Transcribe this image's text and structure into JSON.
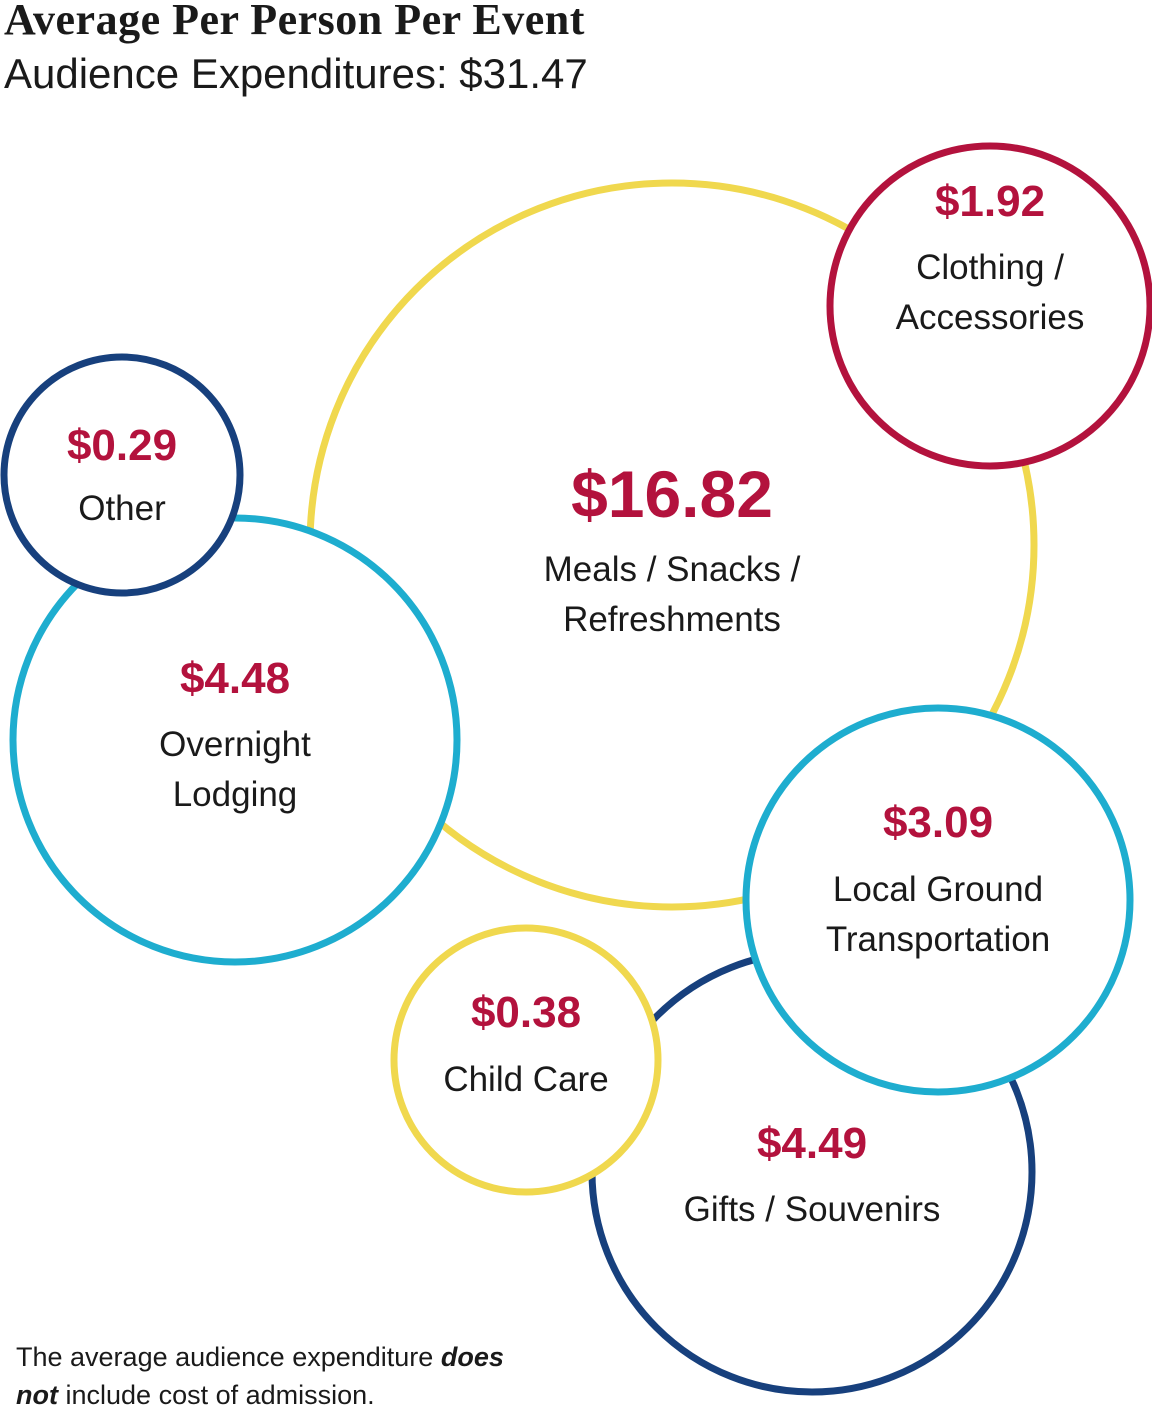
{
  "chart_data": {
    "type": "bubble",
    "title": "Average Per Person Per Event",
    "subtitle": "Audience Expenditures: $31.47",
    "categories": [
      "Meals / Snacks / Refreshments",
      "Clothing / Accessories",
      "Other",
      "Overnight Lodging",
      "Local Ground Transportation",
      "Child Care",
      "Gifts / Souvenirs"
    ],
    "values": [
      16.82,
      1.92,
      0.29,
      4.48,
      3.09,
      0.38,
      4.49
    ],
    "value_labels": [
      "$16.82",
      "$1.92",
      "$0.29",
      "$4.48",
      "$3.09",
      "$0.38",
      "$4.49"
    ],
    "colors": [
      "#f0d84e",
      "#b3123d",
      "#17407d",
      "#1eadcf",
      "#1eadcf",
      "#f0d84e",
      "#17407d"
    ],
    "value_label_color": "#b3123d",
    "note": {
      "before": "The average audience expenditure",
      "emphasis": "does not",
      "after": "include cost of admission."
    }
  }
}
